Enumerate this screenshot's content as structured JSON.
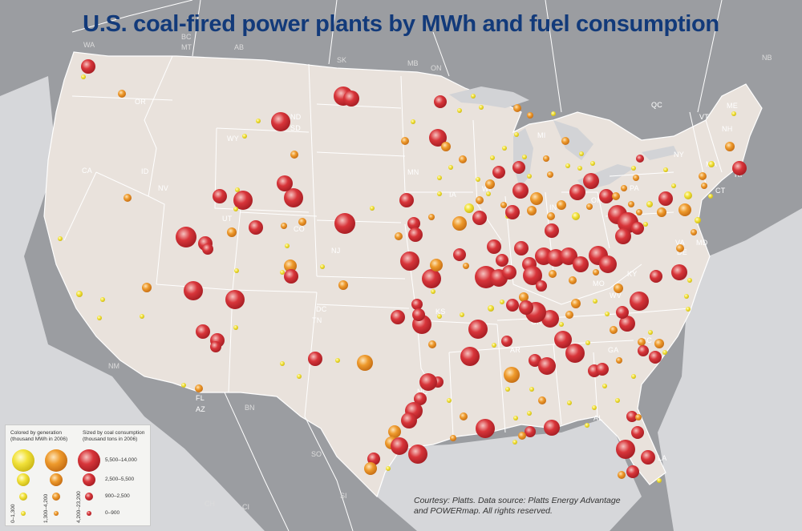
{
  "title": "U.S. coal-fired power plants by MWh and fuel consumption",
  "credit": {
    "line1": "Courtesy: Platts. Data source: Platts Energy Advantage",
    "line2": "and POWERmap. All rights reserved."
  },
  "legend": {
    "color_title_1": "Colored by generation",
    "color_title_2": "(thousand MWh in 2006)",
    "size_title_1": "Sized by coal consumption",
    "size_title_2": "(thousand tons in 2006)",
    "generation_classes": [
      "0–1,300",
      "1,300–4,200",
      "4,200–23,200"
    ],
    "consumption_classes": [
      "5,500–14,000",
      "2,500–5,500",
      "900–2,500",
      "0–900"
    ]
  },
  "colors": {
    "low_generation": "#f2e23a",
    "mid_generation": "#ee9a2c",
    "high_generation": "#d8353a",
    "land": "#e9e2dc",
    "water": "#d2d3d6",
    "title": "#123a7a"
  },
  "region_labels": [
    "WA",
    "BC",
    "MT",
    "AB",
    "SK",
    "MB",
    "ON",
    "NB",
    "OR",
    "ND",
    "SD",
    "WY",
    "MN",
    "MI",
    "QC",
    "ME",
    "VT",
    "NH",
    "MA",
    "RI",
    "CA",
    "ID",
    "NV",
    "NE",
    "WI",
    "NY",
    "UT",
    "CO",
    "IA",
    "IL",
    "IN",
    "OH",
    "PA",
    "CT",
    "NJ",
    "KS",
    "MO",
    "KY",
    "WV",
    "VA",
    "MD",
    "DE",
    "DC",
    "OK",
    "TN",
    "TX",
    "AR",
    "MS",
    "AL",
    "GA",
    "SC",
    "NC",
    "LA",
    "FL",
    "AZ",
    "NM",
    "BN",
    "SO",
    "CH",
    "CI",
    "SI",
    "DG",
    "NL"
  ]
}
